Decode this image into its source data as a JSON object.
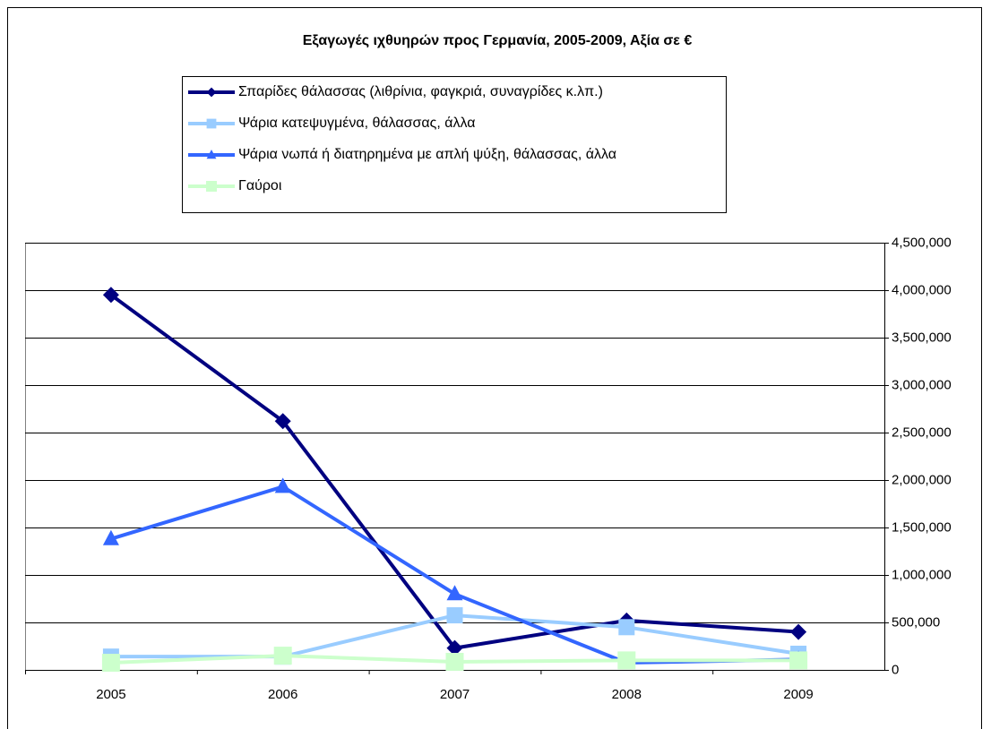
{
  "chart_data": {
    "type": "line",
    "title": "Εξαγωγές ιχθυηρών προς Γερμανία, 2005-2009, Αξία σε €",
    "categories": [
      "2005",
      "2006",
      "2007",
      "2008",
      "2009"
    ],
    "series": [
      {
        "name": "Σπαρίδες θάλασσας (λιθρίνια, φαγκριά, συναγρίδες κ.λπ.)",
        "color": "#000080",
        "marker": "diamond",
        "values": [
          3950000,
          2620000,
          230000,
          520000,
          400000
        ]
      },
      {
        "name": "Ψάρια κατεψυγμένα, θάλασσας, άλλα",
        "color": "#99ccff",
        "marker": "square",
        "values": [
          140000,
          140000,
          575000,
          450000,
          170000
        ]
      },
      {
        "name": "Ψάρια νωπά ή διατηρημένα με απλή ψύξη, θάλασσας, άλλα",
        "color": "#3366ff",
        "marker": "triangle",
        "values": [
          1380000,
          1930000,
          800000,
          75000,
          110000
        ]
      },
      {
        "name": "Γαύροι",
        "color": "#ccffcc",
        "marker": "square",
        "values": [
          75000,
          150000,
          85000,
          100000,
          100000
        ]
      }
    ],
    "ylim": [
      0,
      4500000
    ],
    "yticks": [
      0,
      {
        "value": 500000,
        "label": "500,000"
      },
      {
        "value": 1000000,
        "label": "1,000,000"
      },
      {
        "value": 1500000,
        "label": "1,500,000"
      },
      {
        "value": 2000000,
        "label": "2,000,000"
      },
      {
        "value": 2500000,
        "label": "2,500,000"
      },
      {
        "value": 3000000,
        "label": "3,000,000"
      },
      {
        "value": 3500000,
        "label": "3,500,000"
      },
      {
        "value": 4000000,
        "label": "4,000,000"
      },
      {
        "value": 4500000,
        "label": "4,500,000"
      }
    ],
    "yaxis_side": "right",
    "grid": true
  }
}
